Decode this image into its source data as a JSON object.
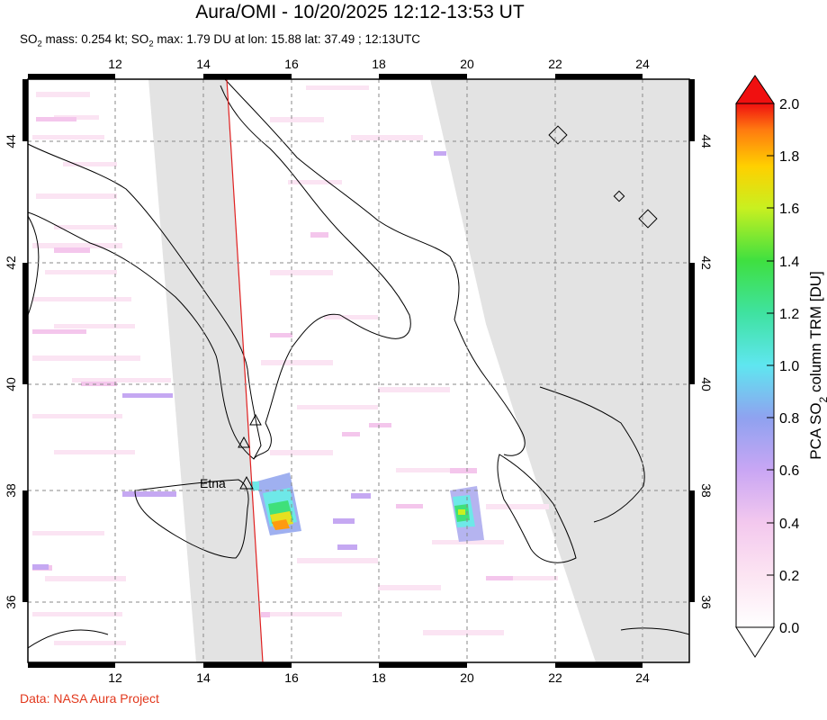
{
  "header": {
    "title": "Aura/OMI - 10/20/2025 12:12-13:53 UT",
    "subtitle_prefix": "SO",
    "subtitle_sub": "2",
    "subtitle_mid": " mass: 0.254 kt; SO",
    "subtitle_sub2": "2",
    "subtitle_rest": " max: 1.79 DU at lon: 15.88 lat: 37.49 ; 12:13UTC"
  },
  "map": {
    "lon_range": [
      10,
      25
    ],
    "lat_range": [
      35,
      45
    ],
    "lon_ticks": [
      "12",
      "14",
      "16",
      "18",
      "20",
      "22",
      "24"
    ],
    "lat_ticks": [
      "36",
      "38",
      "40",
      "42",
      "44"
    ],
    "volcano_label": "Etna",
    "swath_gap_color": "#e3e3e3"
  },
  "colorbar": {
    "ticks": [
      "0.0",
      "0.2",
      "0.4",
      "0.6",
      "0.8",
      "1.0",
      "1.2",
      "1.4",
      "1.6",
      "1.8",
      "2.0"
    ],
    "label_prefix": "PCA SO",
    "label_sub": "2",
    "label_suffix": " column TRM [DU]",
    "range": [
      0,
      2
    ]
  },
  "footer": {
    "credit": "Data: NASA Aura Project"
  }
}
